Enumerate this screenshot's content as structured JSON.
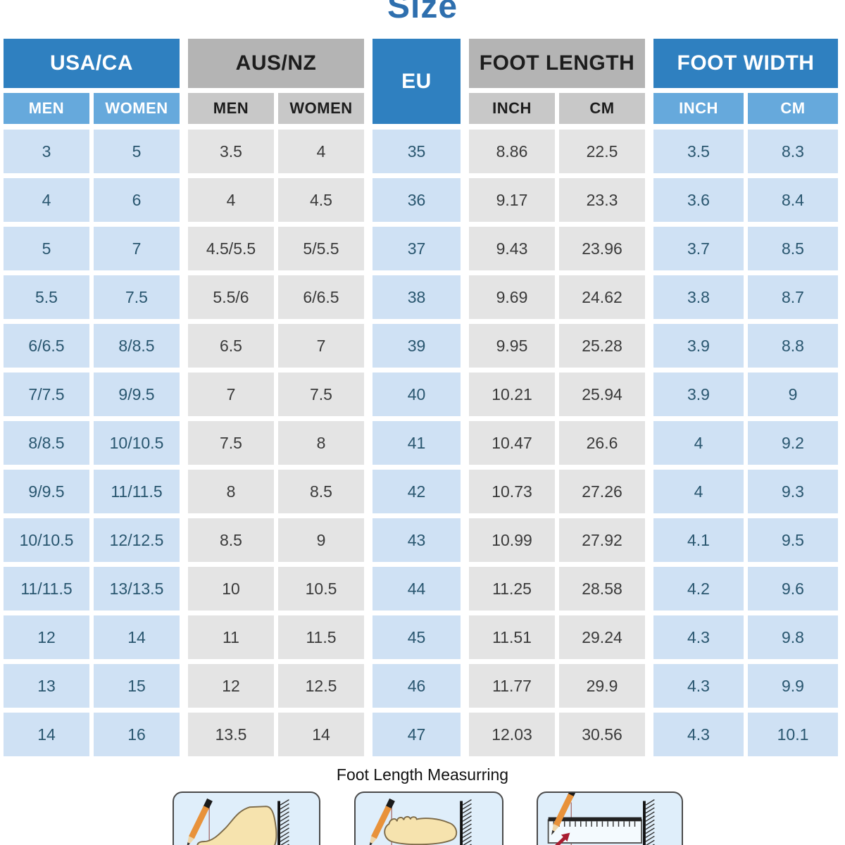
{
  "title": "Size",
  "palette": {
    "title-blue": "#2e6fae",
    "header-blue": "#2f80c0",
    "subheader-blue": "#66a9dc",
    "header-gray": "#b4b4b4",
    "subheader-gray": "#c8c8c8",
    "cell-blue": "#cfe1f4",
    "cell-gray": "#e4e4e4",
    "cell-blue-text": "#29566f",
    "cell-gray-text": "#3a3a3a",
    "illus-bg": "#dfeefa"
  },
  "chart_data": {
    "type": "table",
    "title": "Size",
    "column_groups": [
      {
        "id": "usa",
        "label": "USA/CA",
        "style": "blue",
        "subcolumns": [
          "MEN",
          "WOMEN"
        ]
      },
      {
        "id": "aus",
        "label": "AUS/NZ",
        "style": "gray",
        "subcolumns": [
          "MEN",
          "WOMEN"
        ]
      },
      {
        "id": "eu",
        "label": "EU",
        "style": "blue",
        "subcolumns": []
      },
      {
        "id": "foot_length",
        "label": "FOOT LENGTH",
        "style": "gray",
        "subcolumns": [
          "INCH",
          "CM"
        ]
      },
      {
        "id": "foot_width",
        "label": "FOOT WIDTH",
        "style": "blue",
        "subcolumns": [
          "INCH",
          "CM"
        ]
      }
    ],
    "flat_columns": [
      "USA/CA MEN",
      "USA/CA WOMEN",
      "AUS/NZ MEN",
      "AUS/NZ WOMEN",
      "EU",
      "FOOT LENGTH INCH",
      "FOOT LENGTH CM",
      "FOOT WIDTH INCH",
      "FOOT WIDTH CM"
    ],
    "rows": [
      [
        "3",
        "5",
        "3.5",
        "4",
        "35",
        "8.86",
        "22.5",
        "3.5",
        "8.3"
      ],
      [
        "4",
        "6",
        "4",
        "4.5",
        "36",
        "9.17",
        "23.3",
        "3.6",
        "8.4"
      ],
      [
        "5",
        "7",
        "4.5/5.5",
        "5/5.5",
        "37",
        "9.43",
        "23.96",
        "3.7",
        "8.5"
      ],
      [
        "5.5",
        "7.5",
        "5.5/6",
        "6/6.5",
        "38",
        "9.69",
        "24.62",
        "3.8",
        "8.7"
      ],
      [
        "6/6.5",
        "8/8.5",
        "6.5",
        "7",
        "39",
        "9.95",
        "25.28",
        "3.9",
        "8.8"
      ],
      [
        "7/7.5",
        "9/9.5",
        "7",
        "7.5",
        "40",
        "10.21",
        "25.94",
        "3.9",
        "9"
      ],
      [
        "8/8.5",
        "10/10.5",
        "7.5",
        "8",
        "41",
        "10.47",
        "26.6",
        "4",
        "9.2"
      ],
      [
        "9/9.5",
        "11/11.5",
        "8",
        "8.5",
        "42",
        "10.73",
        "27.26",
        "4",
        "9.3"
      ],
      [
        "10/10.5",
        "12/12.5",
        "8.5",
        "9",
        "43",
        "10.99",
        "27.92",
        "4.1",
        "9.5"
      ],
      [
        "11/11.5",
        "13/13.5",
        "10",
        "10.5",
        "44",
        "11.25",
        "28.58",
        "4.2",
        "9.6"
      ],
      [
        "12",
        "14",
        "11",
        "11.5",
        "45",
        "11.51",
        "29.24",
        "4.3",
        "9.8"
      ],
      [
        "13",
        "15",
        "12",
        "12.5",
        "46",
        "11.77",
        "29.9",
        "4.3",
        "9.9"
      ],
      [
        "14",
        "16",
        "13.5",
        "14",
        "47",
        "12.03",
        "30.56",
        "4.3",
        "10.1"
      ]
    ]
  },
  "footer": {
    "caption": "Foot Length Measurring",
    "illustrations": [
      "foot-side-length-measure",
      "foot-top-length-measure",
      "ruler-length-measure"
    ]
  }
}
